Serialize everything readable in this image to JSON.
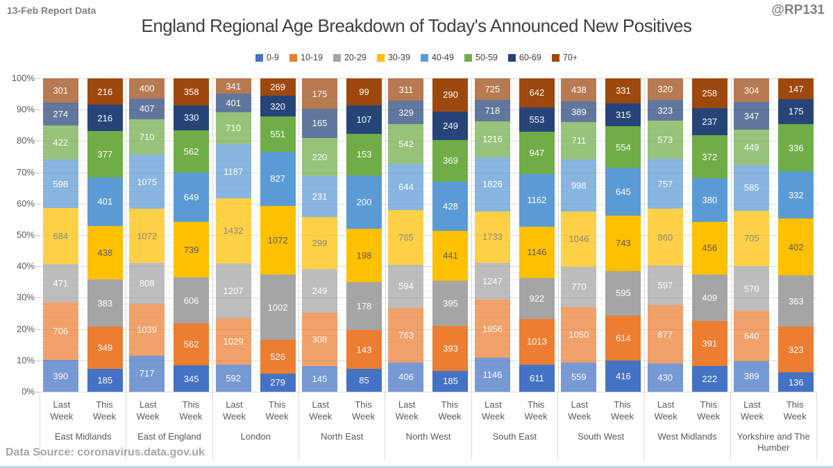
{
  "header": {
    "report_label": "13-Feb Report Data",
    "handle": "@RP131"
  },
  "title": "England Regional Age Breakdown of Today's Announced New Positives",
  "footer": {
    "source": "Data Source: coronavirus.data.gov.uk"
  },
  "colors": {
    "grid_minor": "#EFEFEF",
    "grid_major": "#D9D9D9",
    "divider": "#D9D9D9",
    "bottom_edge": "#BDD7EE",
    "label_dark": "#595959",
    "label_light": "#FFFFFF"
  },
  "chart_data": {
    "type": "bar",
    "variant": "100%-stacked-column",
    "title": "England Regional Age Breakdown of Today's Announced New Positives",
    "xlabel": "",
    "ylabel": "",
    "ylim": [
      0,
      100
    ],
    "y_tick_labels": [
      "0%",
      "10%",
      "20%",
      "30%",
      "40%",
      "50%",
      "60%",
      "70%",
      "80%",
      "90%",
      "100%"
    ],
    "grid": "minor 2% / major 10%",
    "legend_position": "top",
    "age_groups": [
      "0-9",
      "10-19",
      "20-29",
      "30-39",
      "40-49",
      "50-59",
      "60-69",
      "70+"
    ],
    "series_colors": [
      "#4472C4",
      "#ED7D31",
      "#A5A5A5",
      "#FFC000",
      "#5B9BD5",
      "#70AD47",
      "#264478",
      "#9E480E"
    ],
    "dark_text_series": "30-39",
    "bar_labels": [
      "Last Week",
      "This Week"
    ],
    "last_week_opacity": 0.72,
    "regions": [
      {
        "name": "East Midlands",
        "last_week": [
          390,
          706,
          471,
          684,
          598,
          422,
          274,
          301
        ],
        "this_week": [
          185,
          349,
          383,
          438,
          401,
          377,
          216,
          216
        ]
      },
      {
        "name": "East of England",
        "last_week": [
          717,
          1039,
          808,
          1072,
          1075,
          710,
          407,
          400
        ],
        "this_week": [
          345,
          562,
          606,
          739,
          649,
          562,
          330,
          358
        ]
      },
      {
        "name": "London",
        "last_week": [
          592,
          1029,
          1207,
          1432,
          1187,
          710,
          401,
          341
        ],
        "this_week": [
          279,
          526,
          1002,
          1072,
          827,
          551,
          320,
          269
        ]
      },
      {
        "name": "North East",
        "last_week": [
          145,
          308,
          249,
          299,
          231,
          220,
          165,
          175
        ],
        "this_week": [
          85,
          143,
          178,
          198,
          200,
          153,
          107,
          99
        ]
      },
      {
        "name": "North West",
        "last_week": [
          406,
          763,
          594,
          765,
          644,
          542,
          329,
          311
        ],
        "this_week": [
          185,
          393,
          395,
          441,
          428,
          369,
          249,
          290
        ]
      },
      {
        "name": "South East",
        "last_week": [
          1146,
          1956,
          1247,
          1733,
          1826,
          1216,
          718,
          725
        ],
        "this_week": [
          611,
          1013,
          922,
          1146,
          1162,
          947,
          553,
          642
        ]
      },
      {
        "name": "South West",
        "last_week": [
          559,
          1050,
          770,
          1046,
          998,
          711,
          389,
          438
        ],
        "this_week": [
          416,
          614,
          595,
          743,
          645,
          554,
          315,
          331
        ]
      },
      {
        "name": "West Midlands",
        "last_week": [
          430,
          877,
          597,
          860,
          757,
          573,
          323,
          320
        ],
        "this_week": [
          222,
          391,
          409,
          456,
          380,
          372,
          237,
          258
        ]
      },
      {
        "name": "Yorkshire and The Humber",
        "last_week": [
          389,
          640,
          570,
          705,
          585,
          449,
          347,
          304
        ],
        "this_week": [
          136,
          323,
          363,
          402,
          332,
          336,
          175,
          147
        ]
      }
    ]
  }
}
